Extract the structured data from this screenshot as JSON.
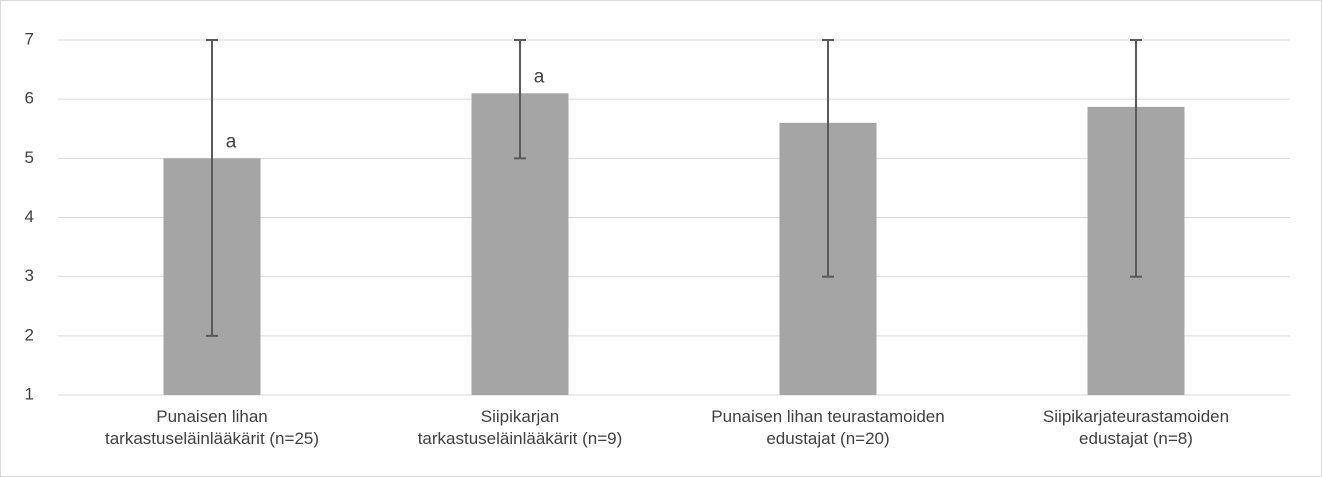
{
  "chart_data": {
    "type": "bar",
    "categories": [
      "Punaisen lihan\ntarkastuseläinlääkärit (n=25)",
      "Siipikarjan\ntarkastuseläinlääkärit (n=9)",
      "Punaisen lihan teurastamoiden\nedustajat (n=20)",
      "Siipikarjateurastamoiden\nedustajat (n=8)"
    ],
    "values": [
      5,
      6.1,
      5.6,
      5.87
    ],
    "min": [
      2,
      5,
      3,
      3
    ],
    "max": [
      7,
      7,
      7,
      7
    ],
    "annotations": [
      "a",
      "a",
      null,
      null
    ],
    "color": "#a5a5a5",
    "error_color": "#595959",
    "ylim": [
      1,
      7
    ],
    "yticks": [
      1,
      2,
      3,
      4,
      5,
      6,
      7
    ],
    "grid": true
  }
}
